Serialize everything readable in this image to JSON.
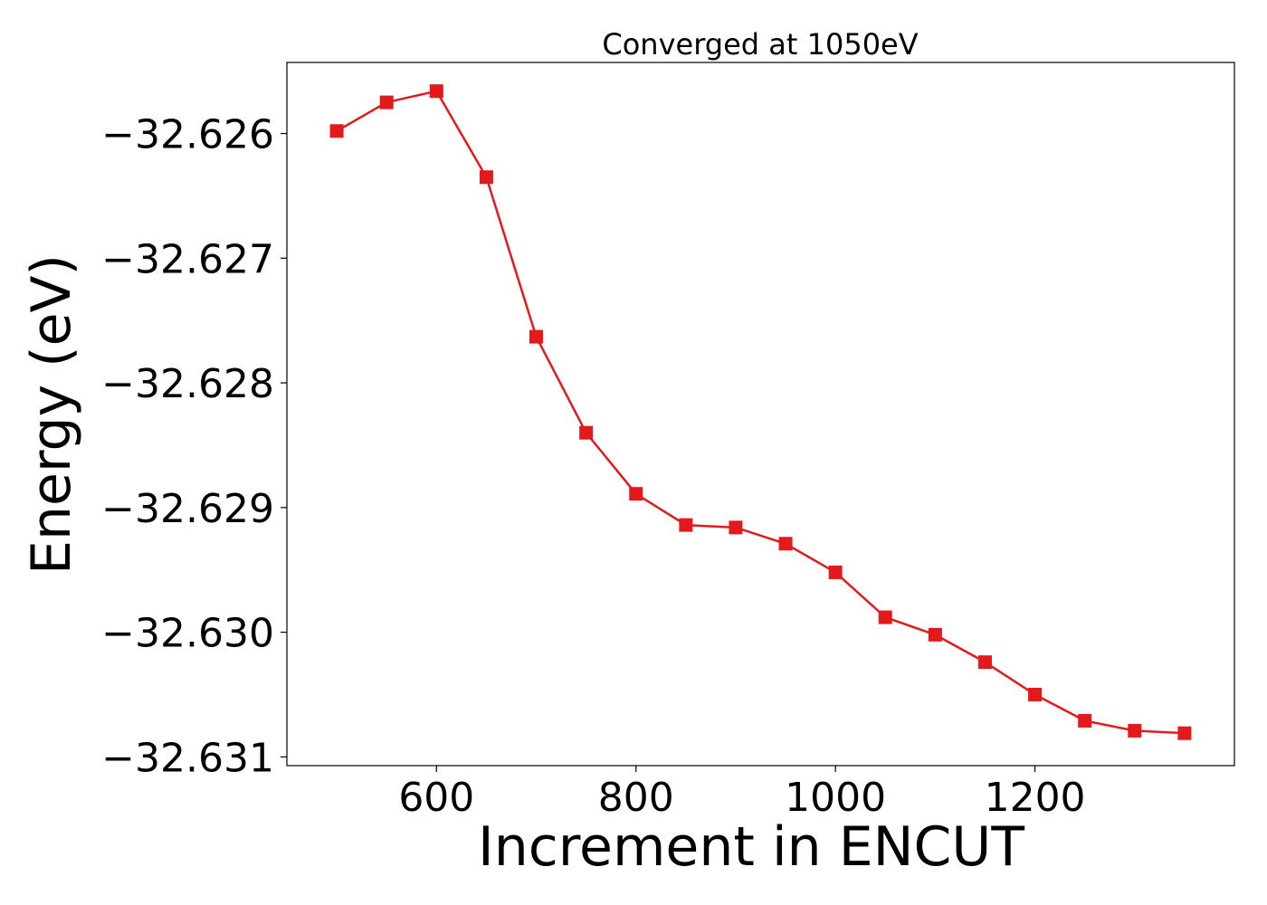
{
  "chart_data": {
    "type": "line",
    "title": "Converged at 1050eV",
    "xlabel": "Increment in ENCUT",
    "ylabel": "Energy (eV)",
    "xlim": [
      450,
      1400
    ],
    "ylim": [
      -32.63107,
      -32.62543
    ],
    "x_ticks": [
      600,
      800,
      1000,
      1200
    ],
    "x_tick_labels": [
      "600",
      "800",
      "1000",
      "1200"
    ],
    "y_ticks": [
      -32.626,
      -32.627,
      -32.628,
      -32.629,
      -32.63,
      -32.631
    ],
    "y_tick_labels": [
      "−32.626",
      "−32.627",
      "−32.628",
      "−32.629",
      "−32.630",
      "−32.631"
    ],
    "grid": false,
    "series": [
      {
        "name": "Energy",
        "color": "#e31a1c",
        "marker": "square",
        "x": [
          500,
          550,
          600,
          650,
          700,
          750,
          800,
          850,
          900,
          950,
          1000,
          1050,
          1100,
          1150,
          1200,
          1250,
          1300,
          1350
        ],
        "values": [
          -32.62598,
          -32.62575,
          -32.62566,
          -32.62635,
          -32.62763,
          -32.6284,
          -32.62889,
          -32.62914,
          -32.62916,
          -32.62929,
          -32.62952,
          -32.62988,
          -32.63002,
          -32.63024,
          -32.6305,
          -32.63071,
          -32.63079,
          -32.63081
        ]
      }
    ]
  }
}
